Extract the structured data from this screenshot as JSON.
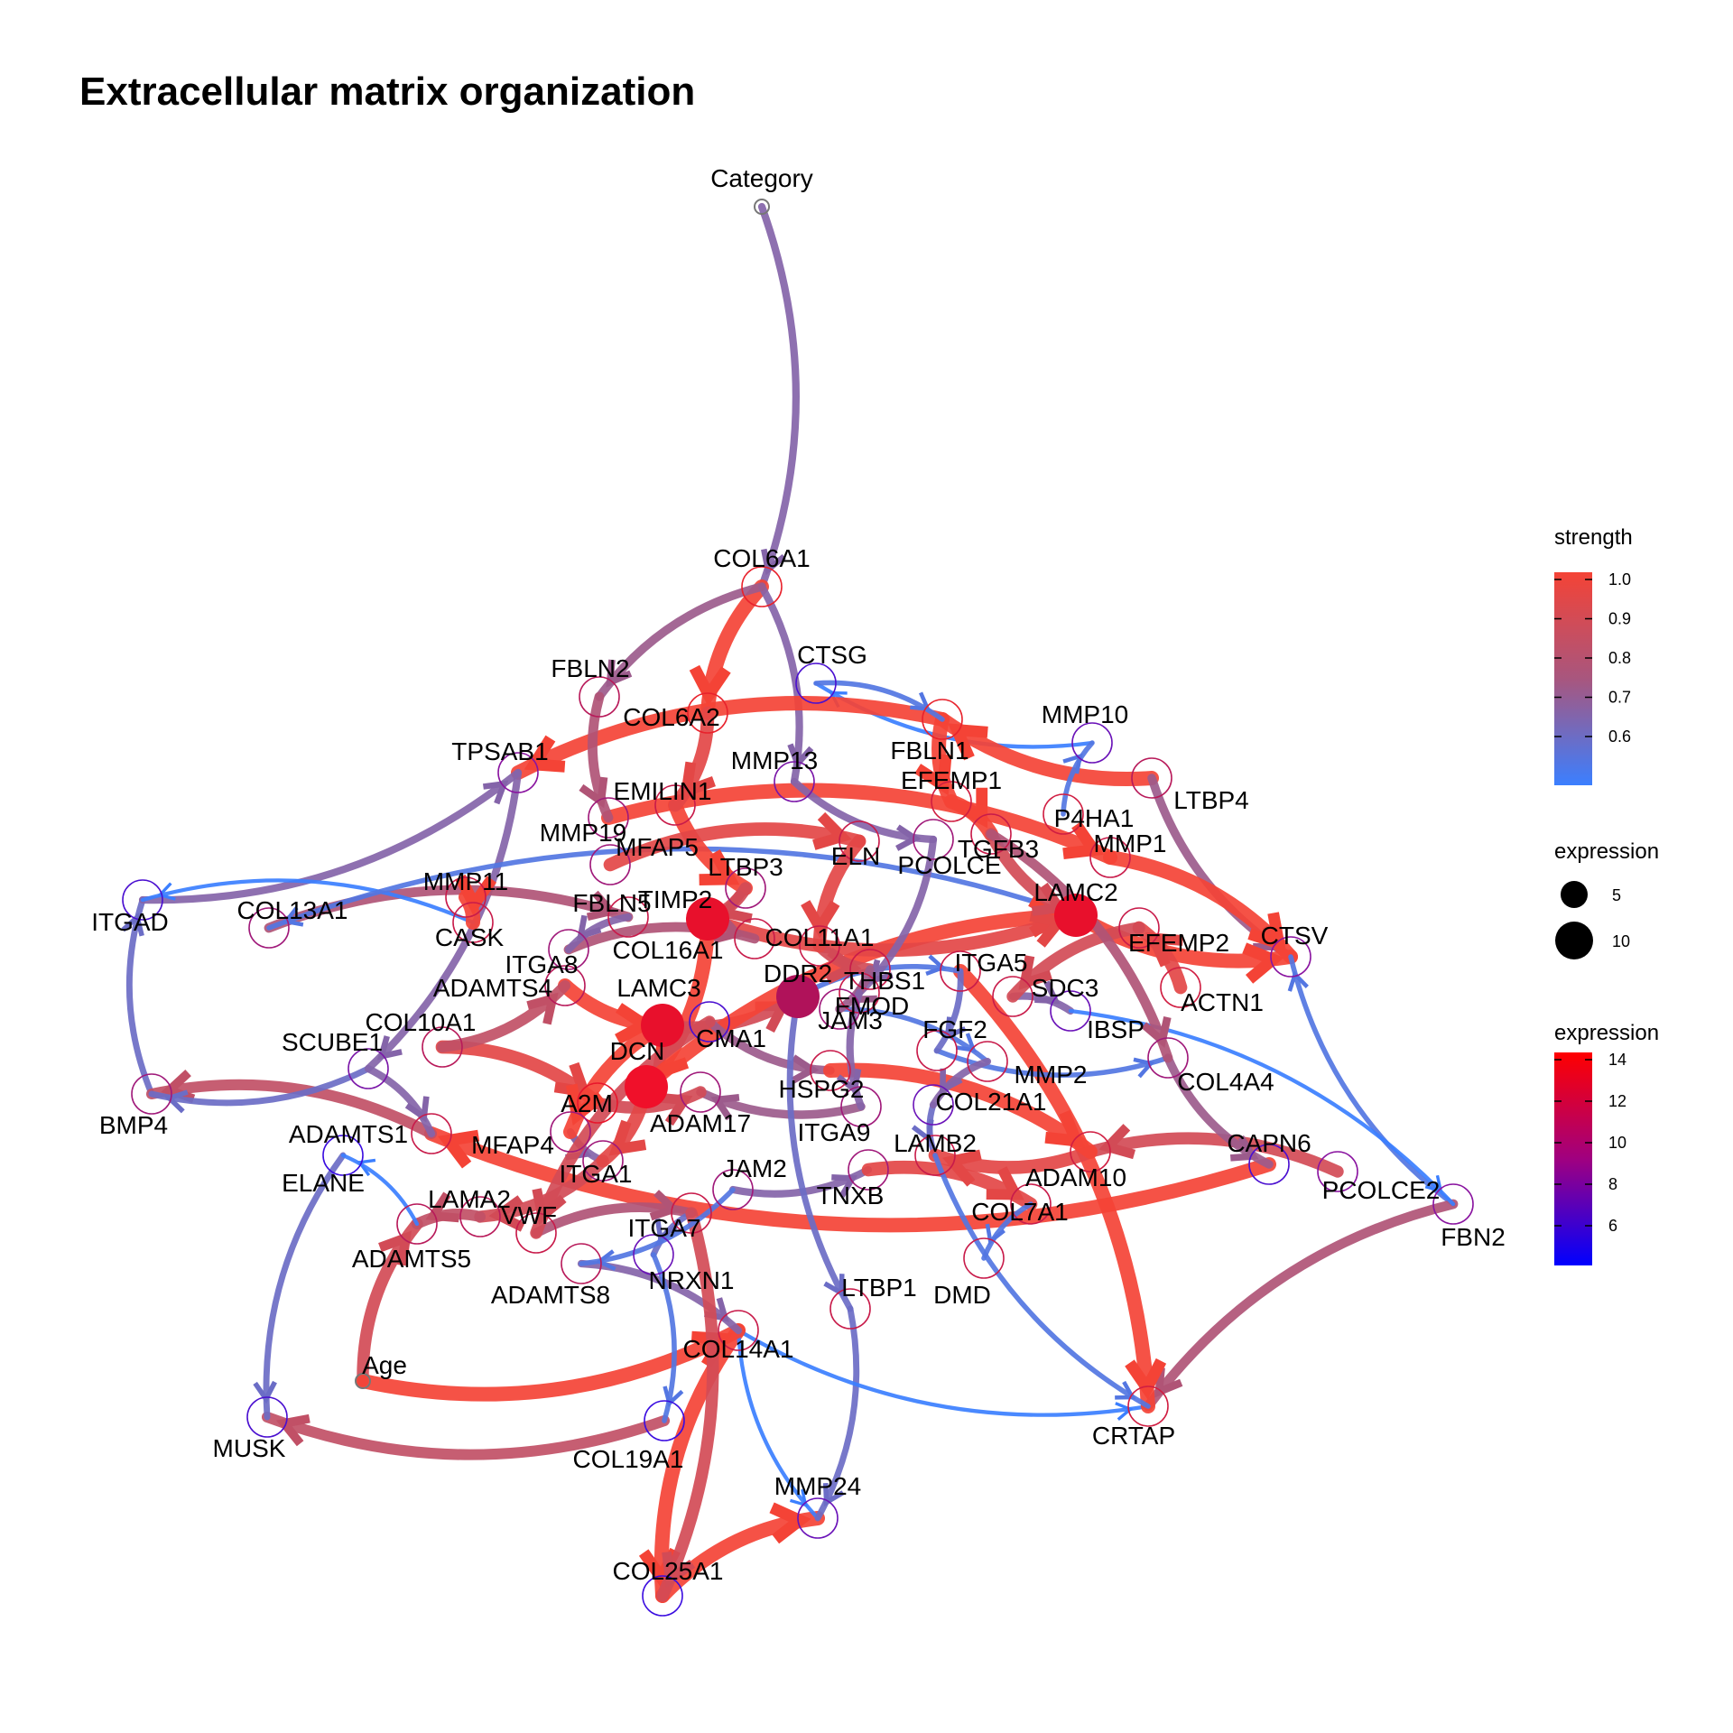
{
  "title": "Extracellular matrix organization",
  "legend": {
    "strength_title": "strength",
    "strength_ticks": [
      "1.0",
      "0.9",
      "0.8",
      "0.7",
      "0.6"
    ],
    "strength_colors": {
      "high": "#f44336",
      "low": "#3b7fff"
    },
    "expression_size_title": "expression",
    "expression_size_ticks": [
      "5",
      "10"
    ],
    "expression_color_title": "expression",
    "expression_color_ticks": [
      "14",
      "12",
      "10",
      "8",
      "6"
    ],
    "expression_colors": {
      "high": "#ff0000",
      "low": "#0000ff"
    }
  },
  "nodes": [
    {
      "id": "Category",
      "ring": "#777777"
    },
    {
      "id": "COL6A1",
      "ring": "#e8222c"
    },
    {
      "id": "CTSG",
      "ring": "#4a0fd0"
    },
    {
      "id": "FBLN2",
      "ring": "#b81a5a"
    },
    {
      "id": "COL6A2",
      "ring": "#e8222c"
    },
    {
      "id": "MMP10",
      "ring": "#6a12b8"
    },
    {
      "id": "FBLN1",
      "ring": "#e8222c"
    },
    {
      "id": "TPSAB1",
      "ring": "#8a14a0"
    },
    {
      "id": "EMILIN1",
      "ring": "#c81b4a"
    },
    {
      "id": "MMP13",
      "ring": "#7a16a8"
    },
    {
      "id": "EFEMP1",
      "ring": "#d01e42"
    },
    {
      "id": "P4HA1",
      "ring": "#d01e42"
    },
    {
      "id": "LTBP4",
      "ring": "#b81a5a"
    },
    {
      "id": "MMP19",
      "ring": "#a0197a"
    },
    {
      "id": "TGFB3",
      "ring": "#c81b4a"
    },
    {
      "id": "MMP1",
      "ring": "#c81b4a"
    },
    {
      "id": "MFAP5",
      "ring": "#a0197a"
    },
    {
      "id": "LTBP3",
      "ring": "#a0197a"
    },
    {
      "id": "ELN",
      "ring": "#c81b4a"
    },
    {
      "id": "PCOLCE",
      "ring": "#a0197a"
    },
    {
      "id": "MMP11",
      "ring": "#c81b4a"
    },
    {
      "id": "LAMC2",
      "ring": "#e8162c"
    },
    {
      "id": "ITGAD",
      "ring": "#4a0fd0"
    },
    {
      "id": "COL13A1",
      "ring": "#a0197a"
    },
    {
      "id": "CASK",
      "ring": "#c81b4a"
    },
    {
      "id": "TIMP2",
      "ring": "#e8162c"
    },
    {
      "id": "FBLN5",
      "ring": "#c81b4a"
    },
    {
      "id": "COL11A1",
      "ring": "#c81b4a"
    },
    {
      "id": "CTSV",
      "ring": "#8a14a0"
    },
    {
      "id": "ITGA8",
      "ring": "#a0197a"
    },
    {
      "id": "COL16A1",
      "ring": "#c81b4a"
    },
    {
      "id": "THBS1",
      "ring": "#c81b4a"
    },
    {
      "id": "ITGA5",
      "ring": "#c81b4a"
    },
    {
      "id": "EFEMP2",
      "ring": "#c81b4a"
    },
    {
      "id": "ADAMTS4",
      "ring": "#b81a5a"
    },
    {
      "id": "DDR2",
      "ring": "#a8145e"
    },
    {
      "id": "FMOD",
      "ring": "#c81b4a"
    },
    {
      "id": "SDC3",
      "ring": "#c81b4a"
    },
    {
      "id": "ACTN1",
      "ring": "#d01e42"
    },
    {
      "id": "LAMC3",
      "ring": "#e8162c"
    },
    {
      "id": "COL10A1",
      "ring": "#b81a5a"
    },
    {
      "id": "IBSP",
      "ring": "#6a12b8"
    },
    {
      "id": "JAM3",
      "ring": "#a0197a"
    },
    {
      "id": "FGF2",
      "ring": "#c81b4a"
    },
    {
      "id": "CMA1",
      "ring": "#4a0fd0"
    },
    {
      "id": "SCUBE1",
      "ring": "#7a16a8"
    },
    {
      "id": "DCN",
      "ring": "#e8162c"
    },
    {
      "id": "MMP2",
      "ring": "#c81b4a"
    },
    {
      "id": "COL4A4",
      "ring": "#a0197a"
    },
    {
      "id": "HSPG2",
      "ring": "#c81b4a"
    },
    {
      "id": "A2M",
      "ring": "#e8162c"
    },
    {
      "id": "BMP4",
      "ring": "#a0197a"
    },
    {
      "id": "COL21A1",
      "ring": "#6a12b8"
    },
    {
      "id": "ADAMTS1",
      "ring": "#c81b4a"
    },
    {
      "id": "ADAM17",
      "ring": "#a0197a"
    },
    {
      "id": "MFAP4",
      "ring": "#a0197a"
    },
    {
      "id": "ITGA9",
      "ring": "#a0197a"
    },
    {
      "id": "LAMB2",
      "ring": "#c81b4a"
    },
    {
      "id": "CAPN6",
      "ring": "#4a0fd0"
    },
    {
      "id": "ELANE",
      "ring": "#3a0ce0"
    },
    {
      "id": "ITGA1",
      "ring": "#a0197a"
    },
    {
      "id": "JAM2",
      "ring": "#a0197a"
    },
    {
      "id": "ADAM10",
      "ring": "#d01e42"
    },
    {
      "id": "PCOLCE2",
      "ring": "#8a14a0"
    },
    {
      "id": "LAMA2",
      "ring": "#b81a5a"
    },
    {
      "id": "TNXB",
      "ring": "#a0197a"
    },
    {
      "id": "FBN2",
      "ring": "#8a14a0"
    },
    {
      "id": "ADAMTS5",
      "ring": "#b81a5a"
    },
    {
      "id": "VWF",
      "ring": "#c81b4a"
    },
    {
      "id": "ITGA7",
      "ring": "#c81b4a"
    },
    {
      "id": "COL7A1",
      "ring": "#c81b4a"
    },
    {
      "id": "ADAMTS8",
      "ring": "#b81a5a"
    },
    {
      "id": "NRXN1",
      "ring": "#6a12b8"
    },
    {
      "id": "LTBP1",
      "ring": "#c81b4a"
    },
    {
      "id": "DMD",
      "ring": "#c81b4a"
    },
    {
      "id": "Age",
      "ring": "#777777"
    },
    {
      "id": "COL14A1",
      "ring": "#c81b4a"
    },
    {
      "id": "CRTAP",
      "ring": "#d01e42"
    },
    {
      "id": "MUSK",
      "ring": "#4a0fd0"
    },
    {
      "id": "COL19A1",
      "ring": "#3a0ce0"
    },
    {
      "id": "MMP24",
      "ring": "#6a12b8"
    },
    {
      "id": "COL25A1",
      "ring": "#3a0ce0"
    }
  ],
  "filled_nodes": [
    {
      "id": "TIMP2",
      "fill": "#e8102c"
    },
    {
      "id": "LAMC2",
      "fill": "#e8102c"
    },
    {
      "id": "DDR2",
      "fill": "#b0125a"
    },
    {
      "id": "LAMC3",
      "fill": "#e8102c"
    },
    {
      "id": "DCN",
      "fill": "#f0102a"
    }
  ],
  "edges": [
    {
      "from": "Category",
      "to": "COL6A1",
      "strength": 0.7
    },
    {
      "from": "COL6A1",
      "to": "COL6A2",
      "strength": 1.0
    },
    {
      "from": "COL6A1",
      "to": "MMP13",
      "strength": 0.7
    },
    {
      "from": "COL6A1",
      "to": "FBLN2",
      "strength": 0.75
    },
    {
      "from": "MMP10",
      "to": "CTSG",
      "strength": 0.55
    },
    {
      "from": "FBLN1",
      "to": "TPSAB1",
      "strength": 1.0
    },
    {
      "from": "LTBP4",
      "to": "FBLN1",
      "strength": 1.0
    },
    {
      "from": "LTBP4",
      "to": "CTSV",
      "strength": 0.75
    },
    {
      "from": "MMP1",
      "to": "CTSV",
      "strength": 1.0
    },
    {
      "from": "LAMC2",
      "to": "CTSV",
      "strength": 1.0
    },
    {
      "from": "FBN2",
      "to": "CTSV",
      "strength": 0.6
    },
    {
      "from": "PCOLCE2",
      "to": "ADAM10",
      "strength": 0.9
    },
    {
      "from": "CAPN6",
      "to": "ADAMTS1",
      "strength": 1.0
    },
    {
      "from": "FBN2",
      "to": "CRTAP",
      "strength": 0.8
    },
    {
      "from": "COL19A1",
      "to": "MUSK",
      "strength": 0.85
    },
    {
      "from": "COL14A1",
      "to": "COL25A1",
      "strength": 1.0
    },
    {
      "from": "COL25A1",
      "to": "MMP24",
      "strength": 1.0
    },
    {
      "from": "COL14A1",
      "to": "MMP24",
      "strength": 0.55
    },
    {
      "from": "LTBP1",
      "to": "MMP24",
      "strength": 0.65
    },
    {
      "from": "COL14A1",
      "to": "CRTAP",
      "strength": 0.55
    },
    {
      "from": "ITGA5",
      "to": "CRTAP",
      "strength": 1.0
    },
    {
      "from": "ELANE",
      "to": "MUSK",
      "strength": 0.65
    },
    {
      "from": "Age",
      "to": "ADAMTS5",
      "strength": 0.9
    },
    {
      "from": "Age",
      "to": "COL14A1",
      "strength": 1.0
    },
    {
      "from": "BMP4",
      "to": "ITGAD",
      "strength": 0.65
    },
    {
      "from": "ITGAD",
      "to": "TPSAB1",
      "strength": 0.7
    },
    {
      "from": "TPSAB1",
      "to": "SCUBE1",
      "strength": 0.7
    },
    {
      "from": "ADAMTS1",
      "to": "BMP4",
      "strength": 0.85
    },
    {
      "from": "COL13A1",
      "to": "FBLN5",
      "strength": 0.8
    },
    {
      "from": "CASK",
      "to": "ITGAD",
      "strength": 0.55
    },
    {
      "from": "SCUBE1",
      "to": "BMP4",
      "strength": 0.65
    },
    {
      "from": "LAMC2",
      "to": "COL13A1",
      "strength": 0.6
    },
    {
      "from": "TIMP2",
      "to": "DCN",
      "strength": 1.0
    },
    {
      "from": "LAMC3",
      "to": "DDR2",
      "strength": 0.9
    },
    {
      "from": "DCN",
      "to": "LAMC2",
      "strength": 1.0
    },
    {
      "from": "TIMP2",
      "to": "LAMC2",
      "strength": 0.95
    },
    {
      "from": "DDR2",
      "to": "ITGA5",
      "strength": 0.6
    },
    {
      "from": "FBLN1",
      "to": "EFEMP1",
      "strength": 1.0
    },
    {
      "from": "EFEMP1",
      "to": "TGFB3",
      "strength": 1.0
    },
    {
      "from": "TGFB3",
      "to": "LAMC2",
      "strength": 0.9
    },
    {
      "from": "MMP19",
      "to": "MMP1",
      "strength": 1.0
    },
    {
      "from": "EMILIN1",
      "to": "LTBP3",
      "strength": 1.0
    },
    {
      "from": "MFAP5",
      "to": "ELN",
      "strength": 0.95
    },
    {
      "from": "COL11A1",
      "to": "THBS1",
      "strength": 0.9
    },
    {
      "from": "ITGA8",
      "to": "COL16A1",
      "strength": 0.8
    },
    {
      "from": "ADAMTS4",
      "to": "LAMC3",
      "strength": 1.0
    },
    {
      "from": "COL10A1",
      "to": "A2M",
      "strength": 0.95
    },
    {
      "from": "CMA1",
      "to": "HSPG2",
      "strength": 0.75
    },
    {
      "from": "JAM3",
      "to": "MMP2",
      "strength": 0.6
    },
    {
      "from": "FGF2",
      "to": "COL4A4",
      "strength": 0.6
    },
    {
      "from": "SDC3",
      "to": "IBSP",
      "strength": 0.7
    },
    {
      "from": "ACTN1",
      "to": "EFEMP2",
      "strength": 0.95
    },
    {
      "from": "PCOLCE",
      "to": "FMOD",
      "strength": 0.7
    },
    {
      "from": "COL21A1",
      "to": "LAMB2",
      "strength": 0.65
    },
    {
      "from": "ITGA9",
      "to": "ADAM17",
      "strength": 0.75
    },
    {
      "from": "MFAP4",
      "to": "ITGA1",
      "strength": 0.7
    },
    {
      "from": "ITGA1",
      "to": "LAMA2",
      "strength": 0.9
    },
    {
      "from": "LAMA2",
      "to": "ADAMTS5",
      "strength": 0.85
    },
    {
      "from": "VWF",
      "to": "ITGA7",
      "strength": 0.8
    },
    {
      "from": "ITGA7",
      "to": "NRXN1",
      "strength": 0.65
    },
    {
      "from": "ADAMTS8",
      "to": "COL14A1",
      "strength": 0.7
    },
    {
      "from": "JAM2",
      "to": "TNXB",
      "strength": 0.7
    },
    {
      "from": "TNXB",
      "to": "COL7A1",
      "strength": 0.95
    },
    {
      "from": "COL7A1",
      "to": "DMD",
      "strength": 0.6
    },
    {
      "from": "ADAM10",
      "to": "LAMB2",
      "strength": 0.95
    },
    {
      "from": "COL4A4",
      "to": "CAPN6",
      "strength": 0.75
    },
    {
      "from": "HSPG2",
      "to": "ADAM10",
      "strength": 1.0
    },
    {
      "from": "A2M",
      "to": "ADAM17",
      "strength": 0.9
    },
    {
      "from": "DCN",
      "to": "ITGA1",
      "strength": 0.95
    },
    {
      "from": "LAMC3",
      "to": "MFAP4",
      "strength": 1.0
    },
    {
      "from": "COL6A2",
      "to": "EMILIN1",
      "strength": 0.95
    },
    {
      "from": "FBLN2",
      "to": "MMP19",
      "strength": 0.8
    },
    {
      "from": "MMP11",
      "to": "CASK",
      "strength": 1.0
    },
    {
      "from": "MMP13",
      "to": "PCOLCE",
      "strength": 0.7
    },
    {
      "from": "P4HA1",
      "to": "MMP10",
      "strength": 0.6
    },
    {
      "from": "EFEMP2",
      "to": "SDC3",
      "strength": 0.9
    },
    {
      "from": "ITGA5",
      "to": "FGF2",
      "strength": 0.65
    },
    {
      "from": "ELN",
      "to": "COL11A1",
      "strength": 0.95
    },
    {
      "from": "LTBP3",
      "to": "TIMP2",
      "strength": 0.9
    },
    {
      "from": "FBLN5",
      "to": "ITGA8",
      "strength": 0.7
    },
    {
      "from": "CTSG",
      "to": "FBLN1",
      "strength": 0.6
    },
    {
      "from": "MMP2",
      "to": "COL21A1",
      "strength": 0.7
    },
    {
      "from": "SCUBE1",
      "to": "ADAMTS1",
      "strength": 0.7
    },
    {
      "from": "COL10A1",
      "to": "ADAMTS4",
      "strength": 0.85
    },
    {
      "from": "THBS1",
      "to": "JAM3",
      "strength": 0.75
    },
    {
      "from": "FMOD",
      "to": "ITGA9",
      "strength": 0.7
    },
    {
      "from": "IBSP",
      "to": "FBN2",
      "strength": 0.55
    },
    {
      "from": "LAMB2",
      "to": "CRTAP",
      "strength": 0.6
    },
    {
      "from": "NRXN1",
      "to": "COL19A1",
      "strength": 0.6
    },
    {
      "from": "ADAMTS5",
      "to": "ELANE",
      "strength": 0.55
    },
    {
      "from": "ITGA7",
      "to": "COL25A1",
      "strength": 0.9
    },
    {
      "from": "DDR2",
      "to": "LTBP1",
      "strength": 0.65
    },
    {
      "from": "JAM2",
      "to": "ADAMTS8",
      "strength": 0.6
    },
    {
      "from": "CMA1",
      "to": "VWF",
      "strength": 0.9
    },
    {
      "from": "TGFB3",
      "to": "COL4A4",
      "strength": 0.8
    }
  ]
}
